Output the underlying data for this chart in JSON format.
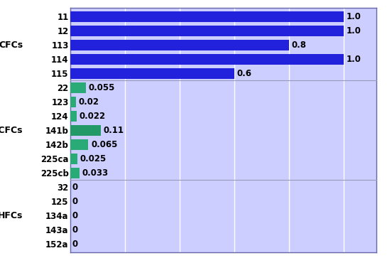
{
  "categories": [
    "11",
    "12",
    "113",
    "114",
    "115",
    "22",
    "123",
    "124",
    "141b",
    "142b",
    "225ca",
    "225cb",
    "32",
    "125",
    "134a",
    "143a",
    "152a"
  ],
  "values": [
    1.0,
    1.0,
    0.8,
    1.0,
    0.6,
    0.055,
    0.02,
    0.022,
    0.11,
    0.065,
    0.025,
    0.033,
    0,
    0,
    0,
    0,
    0
  ],
  "bar_colors": [
    "#2222dd",
    "#2222dd",
    "#2222dd",
    "#2222dd",
    "#2222dd",
    "#2aaa77",
    "#2aaa77",
    "#2aaa77",
    "#229966",
    "#2aaa77",
    "#2aaa77",
    "#2aaa77",
    "#c8caff",
    "#c8caff",
    "#c8caff",
    "#c8caff",
    "#c8caff"
  ],
  "background_color": "#ffffff",
  "plot_bg_color": "#ccceff",
  "bar_height": 0.75,
  "xlim": [
    0,
    1.12
  ],
  "grid_color": "#ffffff",
  "label_fontsize": 8.5,
  "value_fontsize": 8.5,
  "groups": [
    {
      "label": "CFCs",
      "start": 0,
      "end": 4
    },
    {
      "label": "HCFCs",
      "start": 5,
      "end": 11
    },
    {
      "label": "HFCs",
      "start": 12,
      "end": 16
    }
  ],
  "divider_color": "#9999bb",
  "spine_color": "#6666aa"
}
